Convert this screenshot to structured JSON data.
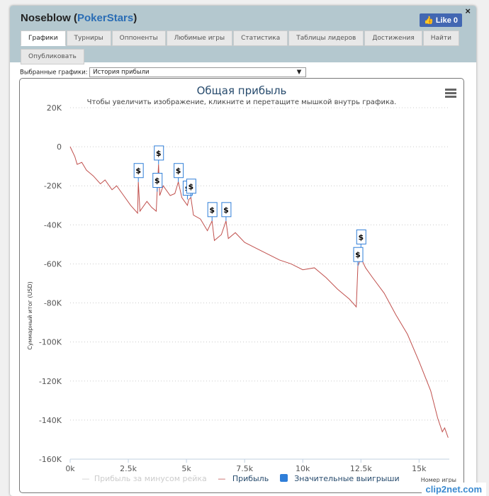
{
  "header": {
    "user": "Noseblow",
    "site": "PokerStars",
    "like": "Like 0",
    "close": "×"
  },
  "tabs": [
    "Графики",
    "Турниры",
    "Оппоненты",
    "Любимые игры",
    "Статистика",
    "Таблицы лидеров",
    "Достижения",
    "Найти",
    "Опубликовать"
  ],
  "selector": {
    "label": "Выбранные графики:",
    "value": "История прибыли",
    "arrow": "▼"
  },
  "watermark": "clip2net.com",
  "chart_data": {
    "type": "line",
    "title": "Общая прибыль",
    "subtitle": "Чтобы увеличить изображение, кликните и перетащите мышкой внутрь графика.",
    "xlabel": "Номер игры",
    "ylabel": "Суммарный итог (USD)",
    "xlim": [
      0,
      16300
    ],
    "ylim": [
      -160000,
      20000
    ],
    "xticks": [
      {
        "v": 0,
        "l": "0k"
      },
      {
        "v": 2500,
        "l": "2.5k"
      },
      {
        "v": 5000,
        "l": "5k"
      },
      {
        "v": 7500,
        "l": "7.5k"
      },
      {
        "v": 10000,
        "l": "10k"
      },
      {
        "v": 12500,
        "l": "12.5k"
      },
      {
        "v": 15000,
        "l": "15k"
      }
    ],
    "yticks": [
      {
        "v": 20000,
        "l": "20K"
      },
      {
        "v": 0,
        "l": "0"
      },
      {
        "v": -20000,
        "l": "-20K"
      },
      {
        "v": -40000,
        "l": "-40K"
      },
      {
        "v": -60000,
        "l": "-60K"
      },
      {
        "v": -80000,
        "l": "-80K"
      },
      {
        "v": -100000,
        "l": "-100K"
      },
      {
        "v": -120000,
        "l": "-120K"
      },
      {
        "v": -140000,
        "l": "-140K"
      },
      {
        "v": -160000,
        "l": "-160K"
      }
    ],
    "legend": [
      "Прибыль за минусом рейка",
      "Прибыль",
      "Значительные выигрыши"
    ],
    "series": [
      {
        "name": "Прибыль",
        "color": "#c0504d",
        "points": [
          [
            0,
            0
          ],
          [
            200,
            -5000
          ],
          [
            300,
            -9000
          ],
          [
            500,
            -8000
          ],
          [
            700,
            -12000
          ],
          [
            1000,
            -15000
          ],
          [
            1300,
            -19000
          ],
          [
            1500,
            -17000
          ],
          [
            1800,
            -22000
          ],
          [
            2000,
            -20000
          ],
          [
            2300,
            -25000
          ],
          [
            2600,
            -30000
          ],
          [
            2900,
            -34000
          ],
          [
            2930,
            -18000
          ],
          [
            3000,
            -33000
          ],
          [
            3300,
            -28000
          ],
          [
            3500,
            -31000
          ],
          [
            3700,
            -33000
          ],
          [
            3740,
            -23000
          ],
          [
            3800,
            -9000
          ],
          [
            3850,
            -25000
          ],
          [
            4000,
            -20000
          ],
          [
            4300,
            -25000
          ],
          [
            4500,
            -24000
          ],
          [
            4650,
            -18000
          ],
          [
            4800,
            -26000
          ],
          [
            5040,
            -30000
          ],
          [
            5100,
            -27000
          ],
          [
            5190,
            -26000
          ],
          [
            5300,
            -35000
          ],
          [
            5600,
            -37000
          ],
          [
            5900,
            -43000
          ],
          [
            6100,
            -38000
          ],
          [
            6200,
            -48000
          ],
          [
            6500,
            -45000
          ],
          [
            6700,
            -38000
          ],
          [
            6800,
            -47000
          ],
          [
            7100,
            -44000
          ],
          [
            7500,
            -49000
          ],
          [
            8000,
            -52000
          ],
          [
            8500,
            -55000
          ],
          [
            9000,
            -58000
          ],
          [
            9500,
            -60000
          ],
          [
            10000,
            -63000
          ],
          [
            10500,
            -62000
          ],
          [
            11000,
            -67000
          ],
          [
            11500,
            -73000
          ],
          [
            12000,
            -78000
          ],
          [
            12300,
            -82000
          ],
          [
            12370,
            -61000
          ],
          [
            12500,
            -57000
          ],
          [
            12700,
            -62000
          ],
          [
            13000,
            -67000
          ],
          [
            13500,
            -75000
          ],
          [
            14000,
            -86000
          ],
          [
            14500,
            -96000
          ],
          [
            15000,
            -110000
          ],
          [
            15500,
            -125000
          ],
          [
            15800,
            -139000
          ],
          [
            16000,
            -146000
          ],
          [
            16100,
            -144000
          ],
          [
            16250,
            -149000
          ]
        ]
      }
    ],
    "flags": [
      [
        2930,
        -18000
      ],
      [
        3800,
        -9000
      ],
      [
        3740,
        -23000
      ],
      [
        4650,
        -18000
      ],
      [
        5040,
        -27000
      ],
      [
        5190,
        -26000
      ],
      [
        6100,
        -38000
      ],
      [
        6700,
        -38000
      ],
      [
        12500,
        -52000
      ],
      [
        12370,
        -61000
      ]
    ],
    "flag_label": "$"
  }
}
